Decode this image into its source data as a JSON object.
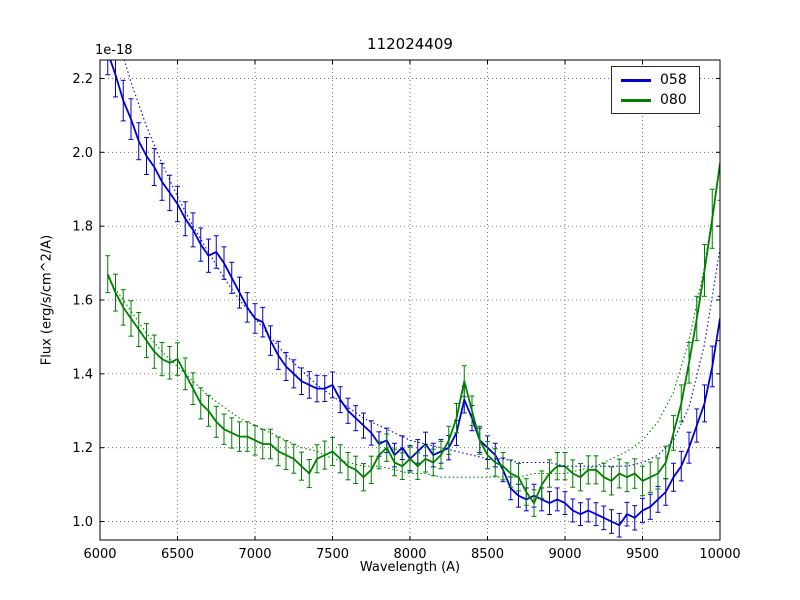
{
  "chart_data": {
    "type": "line",
    "title": "112024409",
    "xlabel": "Wavelength (A)",
    "ylabel": "Flux (erg/s/cm^2/A)",
    "y_offset_label": "1e-18",
    "xlim": [
      6000,
      10000
    ],
    "ylim": [
      0.95,
      2.25
    ],
    "xticks": [
      6000,
      6500,
      7000,
      7500,
      8000,
      8500,
      9000,
      9500,
      10000
    ],
    "yticks": [
      1.0,
      1.2,
      1.4,
      1.6,
      1.8,
      2.0,
      2.2
    ],
    "grid": true,
    "legend_position": "upper right",
    "legend_entries": [
      "058",
      "080"
    ],
    "colors": {
      "blue": "#0000cc",
      "green": "#007f00",
      "grid": "#555555",
      "axes": "#000000"
    },
    "series": [
      {
        "name": "058",
        "color": "#0000cc",
        "style": "solid_with_errorbars",
        "x": [
          6050,
          6100,
          6150,
          6200,
          6250,
          6300,
          6350,
          6400,
          6450,
          6500,
          6550,
          6600,
          6650,
          6700,
          6750,
          6800,
          6850,
          6900,
          6950,
          7000,
          7050,
          7100,
          7150,
          7200,
          7250,
          7300,
          7350,
          7400,
          7450,
          7500,
          7550,
          7600,
          7650,
          7700,
          7750,
          7800,
          7850,
          7900,
          7950,
          8000,
          8050,
          8100,
          8150,
          8200,
          8250,
          8300,
          8350,
          8400,
          8450,
          8500,
          8550,
          8600,
          8650,
          8700,
          8750,
          8800,
          8850,
          8900,
          8950,
          9000,
          9050,
          9100,
          9150,
          9200,
          9250,
          9300,
          9350,
          9400,
          9450,
          9500,
          9550,
          9600,
          9650,
          9700,
          9750,
          9800,
          9850,
          9900,
          9950,
          10000
        ],
        "y": [
          2.27,
          2.21,
          2.14,
          2.09,
          2.03,
          1.99,
          1.96,
          1.92,
          1.89,
          1.86,
          1.82,
          1.79,
          1.75,
          1.72,
          1.73,
          1.7,
          1.66,
          1.62,
          1.58,
          1.55,
          1.54,
          1.49,
          1.45,
          1.42,
          1.4,
          1.38,
          1.37,
          1.36,
          1.36,
          1.37,
          1.33,
          1.3,
          1.28,
          1.26,
          1.24,
          1.21,
          1.22,
          1.18,
          1.2,
          1.17,
          1.19,
          1.21,
          1.18,
          1.19,
          1.2,
          1.24,
          1.33,
          1.28,
          1.22,
          1.2,
          1.18,
          1.14,
          1.09,
          1.07,
          1.06,
          1.07,
          1.06,
          1.05,
          1.06,
          1.05,
          1.03,
          1.02,
          1.03,
          1.02,
          1.01,
          1.0,
          0.99,
          1.02,
          1.01,
          1.03,
          1.04,
          1.06,
          1.08,
          1.12,
          1.15,
          1.2,
          1.26,
          1.32,
          1.42,
          1.55
        ],
        "yerr": [
          0.06,
          0.06,
          0.055,
          0.055,
          0.05,
          0.05,
          0.05,
          0.05,
          0.048,
          0.048,
          0.046,
          0.046,
          0.045,
          0.045,
          0.044,
          0.044,
          0.042,
          0.042,
          0.04,
          0.04,
          0.04,
          0.04,
          0.038,
          0.038,
          0.038,
          0.036,
          0.036,
          0.036,
          0.035,
          0.035,
          0.035,
          0.034,
          0.034,
          0.034,
          0.033,
          0.033,
          0.033,
          0.032,
          0.032,
          0.032,
          0.032,
          0.032,
          0.032,
          0.032,
          0.033,
          0.034,
          0.036,
          0.034,
          0.033,
          0.032,
          0.032,
          0.032,
          0.031,
          0.031,
          0.031,
          0.031,
          0.031,
          0.031,
          0.031,
          0.031,
          0.031,
          0.031,
          0.031,
          0.031,
          0.032,
          0.032,
          0.032,
          0.032,
          0.033,
          0.033,
          0.034,
          0.035,
          0.036,
          0.038,
          0.04,
          0.042,
          0.045,
          0.05,
          0.055,
          0.06
        ]
      },
      {
        "name": "080",
        "color": "#007f00",
        "style": "solid_with_errorbars",
        "x": [
          6050,
          6100,
          6150,
          6200,
          6250,
          6300,
          6350,
          6400,
          6450,
          6500,
          6550,
          6600,
          6650,
          6700,
          6750,
          6800,
          6850,
          6900,
          6950,
          7000,
          7050,
          7100,
          7150,
          7200,
          7250,
          7300,
          7350,
          7400,
          7450,
          7500,
          7550,
          7600,
          7650,
          7700,
          7750,
          7800,
          7850,
          7900,
          7950,
          8000,
          8050,
          8100,
          8150,
          8200,
          8250,
          8300,
          8350,
          8400,
          8450,
          8500,
          8550,
          8600,
          8650,
          8700,
          8750,
          8800,
          8850,
          8900,
          8950,
          9000,
          9050,
          9100,
          9150,
          9200,
          9250,
          9300,
          9350,
          9400,
          9450,
          9500,
          9550,
          9600,
          9650,
          9700,
          9750,
          9800,
          9850,
          9900,
          9950,
          10000
        ],
        "y": [
          1.67,
          1.62,
          1.58,
          1.55,
          1.52,
          1.49,
          1.46,
          1.44,
          1.43,
          1.44,
          1.4,
          1.36,
          1.32,
          1.3,
          1.27,
          1.25,
          1.24,
          1.23,
          1.23,
          1.22,
          1.21,
          1.21,
          1.19,
          1.18,
          1.17,
          1.15,
          1.13,
          1.17,
          1.18,
          1.19,
          1.17,
          1.15,
          1.14,
          1.12,
          1.14,
          1.18,
          1.2,
          1.16,
          1.15,
          1.17,
          1.15,
          1.17,
          1.16,
          1.18,
          1.22,
          1.28,
          1.38,
          1.3,
          1.22,
          1.18,
          1.16,
          1.15,
          1.13,
          1.12,
          1.08,
          1.05,
          1.1,
          1.13,
          1.15,
          1.15,
          1.13,
          1.12,
          1.14,
          1.14,
          1.12,
          1.11,
          1.13,
          1.12,
          1.13,
          1.11,
          1.12,
          1.13,
          1.16,
          1.24,
          1.32,
          1.43,
          1.55,
          1.68,
          1.82,
          1.97
        ],
        "yerr": [
          0.05,
          0.05,
          0.048,
          0.048,
          0.046,
          0.046,
          0.045,
          0.045,
          0.044,
          0.044,
          0.043,
          0.043,
          0.042,
          0.042,
          0.042,
          0.041,
          0.041,
          0.04,
          0.04,
          0.04,
          0.04,
          0.04,
          0.039,
          0.039,
          0.039,
          0.038,
          0.038,
          0.038,
          0.038,
          0.038,
          0.038,
          0.037,
          0.037,
          0.037,
          0.037,
          0.037,
          0.037,
          0.036,
          0.036,
          0.036,
          0.036,
          0.036,
          0.036,
          0.037,
          0.038,
          0.04,
          0.042,
          0.04,
          0.038,
          0.037,
          0.037,
          0.037,
          0.037,
          0.037,
          0.036,
          0.036,
          0.037,
          0.037,
          0.037,
          0.037,
          0.037,
          0.037,
          0.038,
          0.038,
          0.038,
          0.038,
          0.039,
          0.039,
          0.04,
          0.04,
          0.041,
          0.042,
          0.044,
          0.047,
          0.05,
          0.055,
          0.06,
          0.07,
          0.08,
          0.1
        ]
      },
      {
        "name": "058_model_fit",
        "color": "#0000cc",
        "style": "dotted",
        "x": [
          6050,
          6100,
          6200,
          6300,
          6400,
          6500,
          6600,
          6700,
          6800,
          6900,
          7000,
          7100,
          7200,
          7300,
          7400,
          7500,
          7600,
          7700,
          7800,
          7900,
          8000,
          8100,
          8200,
          8300,
          8400,
          8500,
          8600,
          8700,
          8800,
          8900,
          9000,
          9100,
          9200,
          9300,
          9400,
          9500,
          9600,
          9700,
          9800,
          9900,
          10000
        ],
        "y": [
          2.4,
          2.33,
          2.19,
          2.07,
          1.97,
          1.88,
          1.8,
          1.73,
          1.66,
          1.6,
          1.55,
          1.5,
          1.45,
          1.41,
          1.37,
          1.34,
          1.31,
          1.28,
          1.26,
          1.24,
          1.22,
          1.21,
          1.2,
          1.19,
          1.18,
          1.17,
          1.17,
          1.16,
          1.16,
          1.16,
          1.15,
          1.15,
          1.15,
          1.15,
          1.15,
          1.16,
          1.18,
          1.22,
          1.31,
          1.48,
          1.74
        ]
      },
      {
        "name": "080_model_fit",
        "color": "#007f00",
        "style": "dotted",
        "x": [
          6050,
          6100,
          6200,
          6300,
          6400,
          6500,
          6600,
          6700,
          6800,
          6900,
          7000,
          7100,
          7200,
          7300,
          7400,
          7500,
          7600,
          7700,
          7800,
          7900,
          8000,
          8100,
          8200,
          8300,
          8400,
          8500,
          8600,
          8700,
          8800,
          8900,
          9000,
          9100,
          9200,
          9300,
          9400,
          9500,
          9600,
          9700,
          9800,
          9900,
          10000
        ],
        "y": [
          1.66,
          1.63,
          1.57,
          1.51,
          1.46,
          1.42,
          1.38,
          1.34,
          1.31,
          1.28,
          1.26,
          1.24,
          1.22,
          1.2,
          1.19,
          1.17,
          1.16,
          1.15,
          1.15,
          1.14,
          1.13,
          1.13,
          1.12,
          1.12,
          1.12,
          1.12,
          1.12,
          1.12,
          1.13,
          1.13,
          1.13,
          1.14,
          1.15,
          1.17,
          1.19,
          1.22,
          1.27,
          1.35,
          1.49,
          1.69,
          1.97
        ]
      }
    ]
  }
}
